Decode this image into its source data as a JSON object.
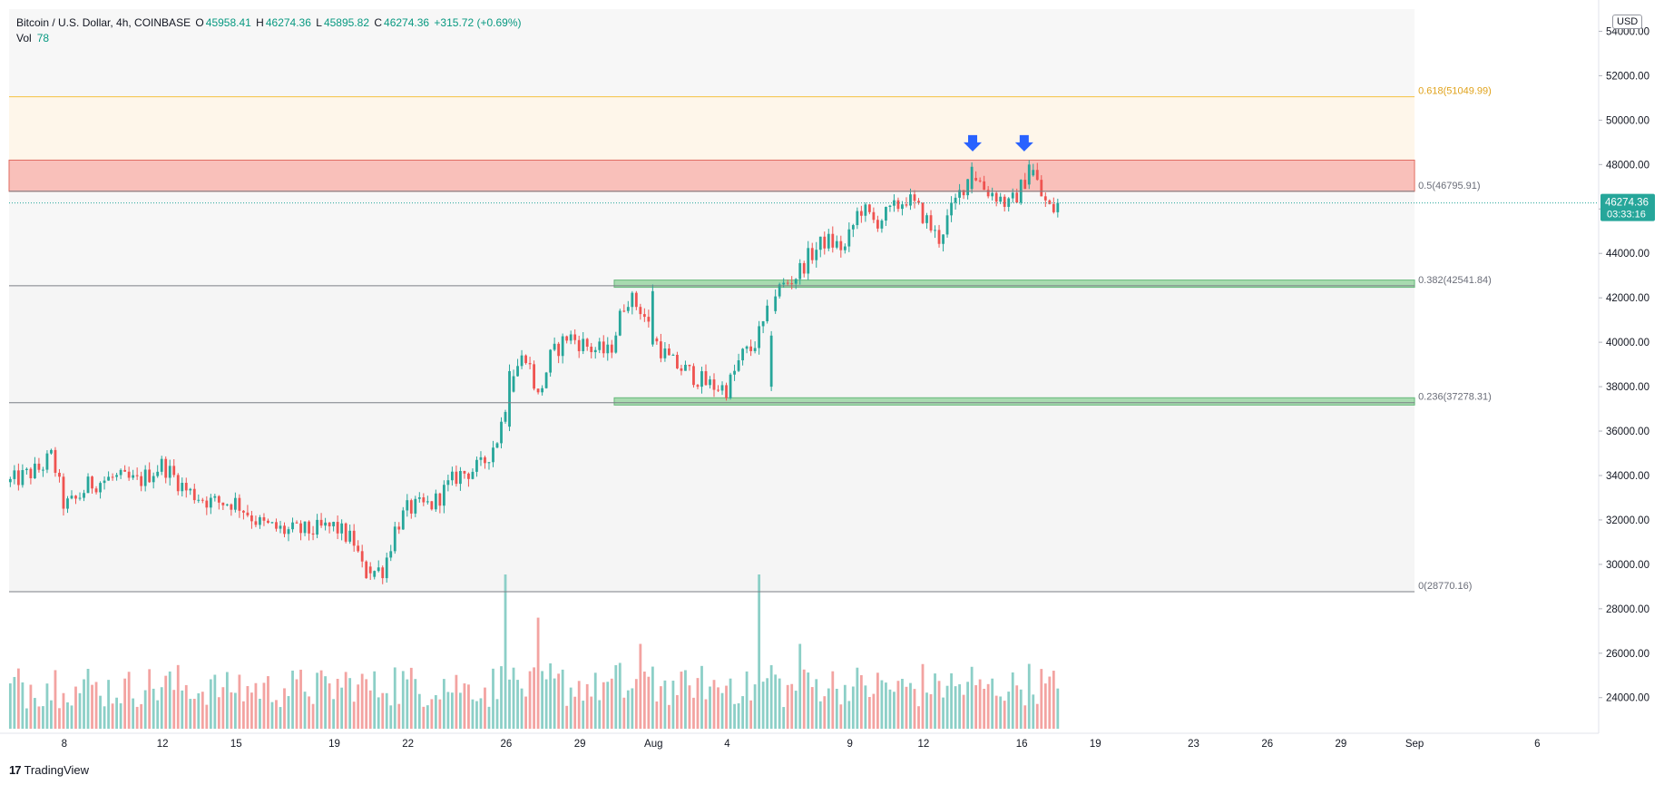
{
  "header": {
    "symbol": "Bitcoin / U.S. Dollar, 4h, COINBASE",
    "o_label": "O",
    "o_value": "45958.41",
    "h_label": "H",
    "h_value": "46274.36",
    "l_label": "L",
    "l_value": "45895.82",
    "c_label": "C",
    "c_value": "46274.36",
    "change": "+315.72 (+0.69%)",
    "vol_label": "Vol",
    "vol_value": "78"
  },
  "currency_button": "USD",
  "brand": "TradingView",
  "colors": {
    "up": "#26a69a",
    "down": "#ef5350",
    "up_vol": "#8ccfc7",
    "down_vol": "#f3a3a1",
    "resistance_fill": "#f9c0ba",
    "support_fill": "#a8dbb0",
    "fib_618": "#f5c242",
    "arrow": "#2962ff"
  },
  "chart_data": {
    "type": "candlestick",
    "y_axis": {
      "ylim": [
        22600,
        55000
      ],
      "ticks": [
        "24000.00",
        "26000.00",
        "28000.00",
        "30000.00",
        "32000.00",
        "34000.00",
        "36000.00",
        "38000.00",
        "40000.00",
        "42000.00",
        "44000.00",
        "46000.00",
        "48000.00",
        "50000.00",
        "52000.00",
        "54000.00"
      ]
    },
    "x_axis": {
      "ticks": [
        {
          "label": "8",
          "t": 1
        },
        {
          "label": "12",
          "t": 5
        },
        {
          "label": "15",
          "t": 8
        },
        {
          "label": "19",
          "t": 12
        },
        {
          "label": "22",
          "t": 15
        },
        {
          "label": "26",
          "t": 19
        },
        {
          "label": "29",
          "t": 22
        },
        {
          "label": "Aug",
          "t": 25
        },
        {
          "label": "4",
          "t": 28
        },
        {
          "label": "9",
          "t": 33
        },
        {
          "label": "12",
          "t": 36
        },
        {
          "label": "16",
          "t": 40
        },
        {
          "label": "19",
          "t": 43
        },
        {
          "label": "23",
          "t": 47
        },
        {
          "label": "26",
          "t": 50
        },
        {
          "label": "29",
          "t": 53
        },
        {
          "label": "Sep",
          "t": 56
        },
        {
          "label": "6",
          "t": 61
        }
      ],
      "t_range": [
        -1.25,
        63.5
      ]
    },
    "price_path": [
      [
        -1.2,
        33700
      ],
      [
        0,
        34300
      ],
      [
        0.5,
        34900
      ],
      [
        1,
        32600
      ],
      [
        1.5,
        32900
      ],
      [
        2,
        33600
      ],
      [
        3,
        33900
      ],
      [
        4,
        33700
      ],
      [
        5,
        34500
      ],
      [
        6,
        33300
      ],
      [
        7,
        32800
      ],
      [
        8,
        32800
      ],
      [
        9,
        31800
      ],
      [
        10,
        31500
      ],
      [
        11,
        31500
      ],
      [
        12,
        31700
      ],
      [
        12.8,
        31000
      ],
      [
        13.2,
        29600
      ],
      [
        14,
        29800
      ],
      [
        14.5,
        31700
      ],
      [
        15,
        32500
      ],
      [
        16,
        32700
      ],
      [
        17,
        34000
      ],
      [
        18,
        34400
      ],
      [
        18.7,
        35800
      ],
      [
        19.2,
        38500
      ],
      [
        19.8,
        39500
      ],
      [
        20.3,
        37500
      ],
      [
        20.8,
        39300
      ],
      [
        21.5,
        40300
      ],
      [
        22.5,
        39700
      ],
      [
        23.2,
        39500
      ],
      [
        23.9,
        42100
      ],
      [
        24.5,
        41500
      ],
      [
        25.1,
        40000
      ],
      [
        25.7,
        39100
      ],
      [
        26.5,
        38600
      ],
      [
        27.2,
        38100
      ],
      [
        28,
        37900
      ],
      [
        28.6,
        39400
      ],
      [
        29,
        39700
      ],
      [
        29.5,
        40800
      ],
      [
        30,
        42300
      ],
      [
        30.8,
        43000
      ],
      [
        31.3,
        43800
      ],
      [
        32,
        44600
      ],
      [
        32.8,
        44200
      ],
      [
        33.4,
        46100
      ],
      [
        34,
        45400
      ],
      [
        34.6,
        45800
      ],
      [
        35.3,
        46500
      ],
      [
        36,
        45700
      ],
      [
        36.6,
        44600
      ],
      [
        37,
        45600
      ],
      [
        37.6,
        47000
      ],
      [
        38,
        47700
      ],
      [
        38.5,
        46900
      ],
      [
        39,
        46600
      ],
      [
        39.5,
        46100
      ],
      [
        40,
        47000
      ],
      [
        40.4,
        47900
      ],
      [
        40.8,
        46600
      ],
      [
        41.2,
        45900
      ],
      [
        41.6,
        46274
      ]
    ],
    "anchor_candles": [
      {
        "t": 13.4,
        "o": 29900,
        "c": 29600,
        "h": 30100,
        "l": 29300
      },
      {
        "t": 19.1,
        "o": 36200,
        "c": 38700,
        "h": 39000,
        "l": 36000
      },
      {
        "t": 25.0,
        "o": 39900,
        "c": 42300,
        "h": 42600,
        "l": 39800
      },
      {
        "t": 29.8,
        "o": 38000,
        "c": 40300,
        "h": 40500,
        "l": 37800
      },
      {
        "t": 37.9,
        "o": 46900,
        "c": 47900,
        "h": 48100,
        "l": 46700
      },
      {
        "t": 40.3,
        "o": 47100,
        "c": 48000,
        "h": 48200,
        "l": 46900
      }
    ],
    "volume_spikes": [
      {
        "t": 19.0,
        "v": 1.0
      },
      {
        "t": 29.3,
        "v": 1.0
      },
      {
        "t": 20.3,
        "v": 0.72
      },
      {
        "t": 31.0,
        "v": 0.55
      },
      {
        "t": 24.5,
        "v": 0.55
      }
    ],
    "zones": [
      {
        "kind": "resistance",
        "from": 46795.91,
        "to": 48200,
        "t_start": -1.25,
        "t_end": 56
      },
      {
        "kind": "support",
        "from": 42541.84,
        "to": 42800,
        "t_start": 23.4,
        "t_end": 56
      },
      {
        "kind": "support",
        "from": 37278.31,
        "to": 37500,
        "t_start": 23.4,
        "t_end": 56
      }
    ],
    "fib_levels": [
      {
        "label": "0.618(51049.99)",
        "value": 51049.99,
        "color": "#f5c242"
      },
      {
        "label": "0.5(46795.91)",
        "value": 46795.91,
        "color": "#7b7f86"
      },
      {
        "label": "0.382(42541.84)",
        "value": 42541.84,
        "color": "#7b7f86"
      },
      {
        "label": "0.236(37278.31)",
        "value": 37278.31,
        "color": "#7b7f86"
      },
      {
        "label": "0(28770.16)",
        "value": 28770.16,
        "color": "#7b7f86"
      }
    ],
    "arrows": [
      {
        "t": 38.0,
        "price": 49000
      },
      {
        "t": 40.1,
        "price": 49000
      }
    ],
    "last_price": {
      "value": 46274.36,
      "label": "46274.36",
      "countdown": "03:33:16"
    }
  }
}
